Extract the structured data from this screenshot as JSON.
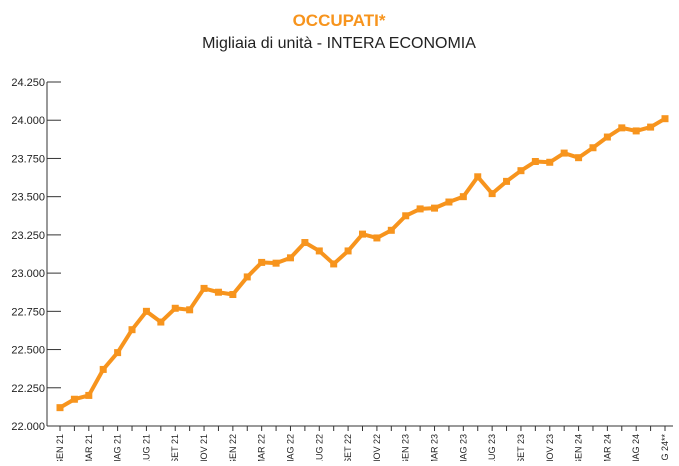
{
  "chart_data": {
    "type": "line",
    "title": "OCCUPATI*",
    "subtitle": "Migliaia di unità - INTERA ECONOMIA",
    "categories": [
      "GEN 21",
      null,
      "MAR 21",
      null,
      "MAG 21",
      null,
      "LUG 21",
      null,
      "SET 21",
      null,
      "NOV 21",
      null,
      "GEN 22",
      null,
      "MAR 22",
      null,
      "MAG 22",
      null,
      "LUG 22",
      null,
      "SET 22",
      null,
      "NOV 22",
      null,
      "GEN 23",
      null,
      "MAR 23",
      null,
      "MAG 23",
      null,
      "LUG 23",
      null,
      "SET 23",
      null,
      "NOV 23",
      null,
      "GEN 24",
      null,
      "MAR 24",
      null,
      "MAG 24",
      null,
      "UG 24**"
    ],
    "series": [
      {
        "name": "Occupati",
        "color": "#f7941d",
        "values": [
          22120,
          22175,
          22200,
          22370,
          22480,
          22630,
          22750,
          22680,
          22770,
          22760,
          22900,
          22875,
          22860,
          22975,
          23070,
          23065,
          23100,
          23200,
          23145,
          23060,
          23145,
          23255,
          23230,
          23280,
          23375,
          23420,
          23425,
          23465,
          23500,
          23630,
          23520,
          23600,
          23670,
          23730,
          23725,
          23785,
          23755,
          23820,
          23890,
          23950,
          23930,
          23955,
          24010
        ]
      }
    ],
    "ylim": [
      22000,
      24250
    ],
    "yticks": [
      {
        "value": 22000,
        "label": "22.000"
      },
      {
        "value": 22250,
        "label": "22.250"
      },
      {
        "value": 22500,
        "label": "22.500"
      },
      {
        "value": 22750,
        "label": "22.750"
      },
      {
        "value": 23000,
        "label": "23.000"
      },
      {
        "value": 23250,
        "label": "23.250"
      },
      {
        "value": 23500,
        "label": "23.500"
      },
      {
        "value": 23750,
        "label": "23.750"
      },
      {
        "value": 24000,
        "label": "24.000"
      },
      {
        "value": 24250,
        "label": "24.250"
      }
    ],
    "grid": false
  }
}
